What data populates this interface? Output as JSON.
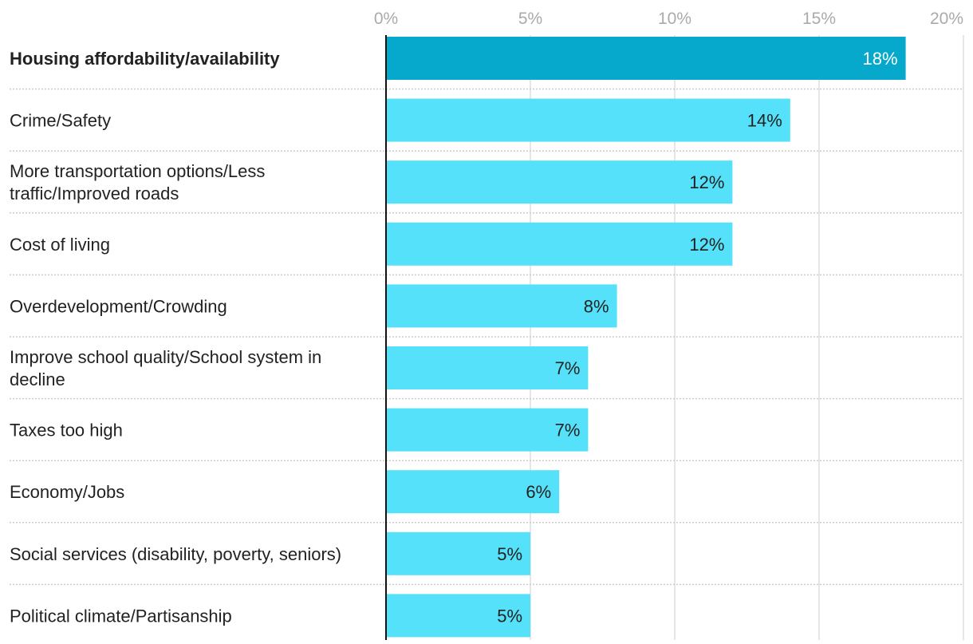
{
  "chart_data": {
    "type": "bar",
    "orientation": "horizontal",
    "title": "",
    "xlabel": "",
    "ylabel": "",
    "xlim": [
      0,
      20
    ],
    "ticks": [
      0,
      5,
      10,
      15,
      20
    ],
    "tick_labels": [
      "0%",
      "5%",
      "10%",
      "15%",
      "20%"
    ],
    "grid": true,
    "categories": [
      "Housing affordability/availability",
      "Crime/Safety",
      "More transportation options/Less traffic/Improved roads",
      "Cost of living",
      "Overdevelopment/Crowding",
      "Improve school quality/School system in decline",
      "Taxes too high",
      "Economy/Jobs",
      "Social services (disability, poverty, seniors)",
      "Political climate/Partisanship"
    ],
    "category_lines": [
      [
        "Housing affordability/availability"
      ],
      [
        "Crime/Safety"
      ],
      [
        "More transportation options/Less",
        "traffic/Improved roads"
      ],
      [
        "Cost of living"
      ],
      [
        "Overdevelopment/Crowding"
      ],
      [
        "Improve school quality/School system in",
        "decline"
      ],
      [
        "Taxes too high"
      ],
      [
        "Economy/Jobs"
      ],
      [
        "Social services (disability, poverty, seniors)"
      ],
      [
        "Political climate/Partisanship"
      ]
    ],
    "values": [
      18,
      14,
      12,
      12,
      8,
      7,
      7,
      6,
      5,
      5
    ],
    "value_labels": [
      "18%",
      "14%",
      "12%",
      "12%",
      "8%",
      "7%",
      "7%",
      "6%",
      "5%",
      "5%"
    ],
    "highlight_index": 0,
    "colors": {
      "highlight": "#06a9cb",
      "bar": "#55e1f9",
      "highlight_label": "#ffffff",
      "label": "#222222",
      "category_text": "#222222",
      "tick_text": "#aaaaaa",
      "grid": "#dddddd",
      "separator": "#cccccc",
      "axis": "#111111"
    }
  }
}
